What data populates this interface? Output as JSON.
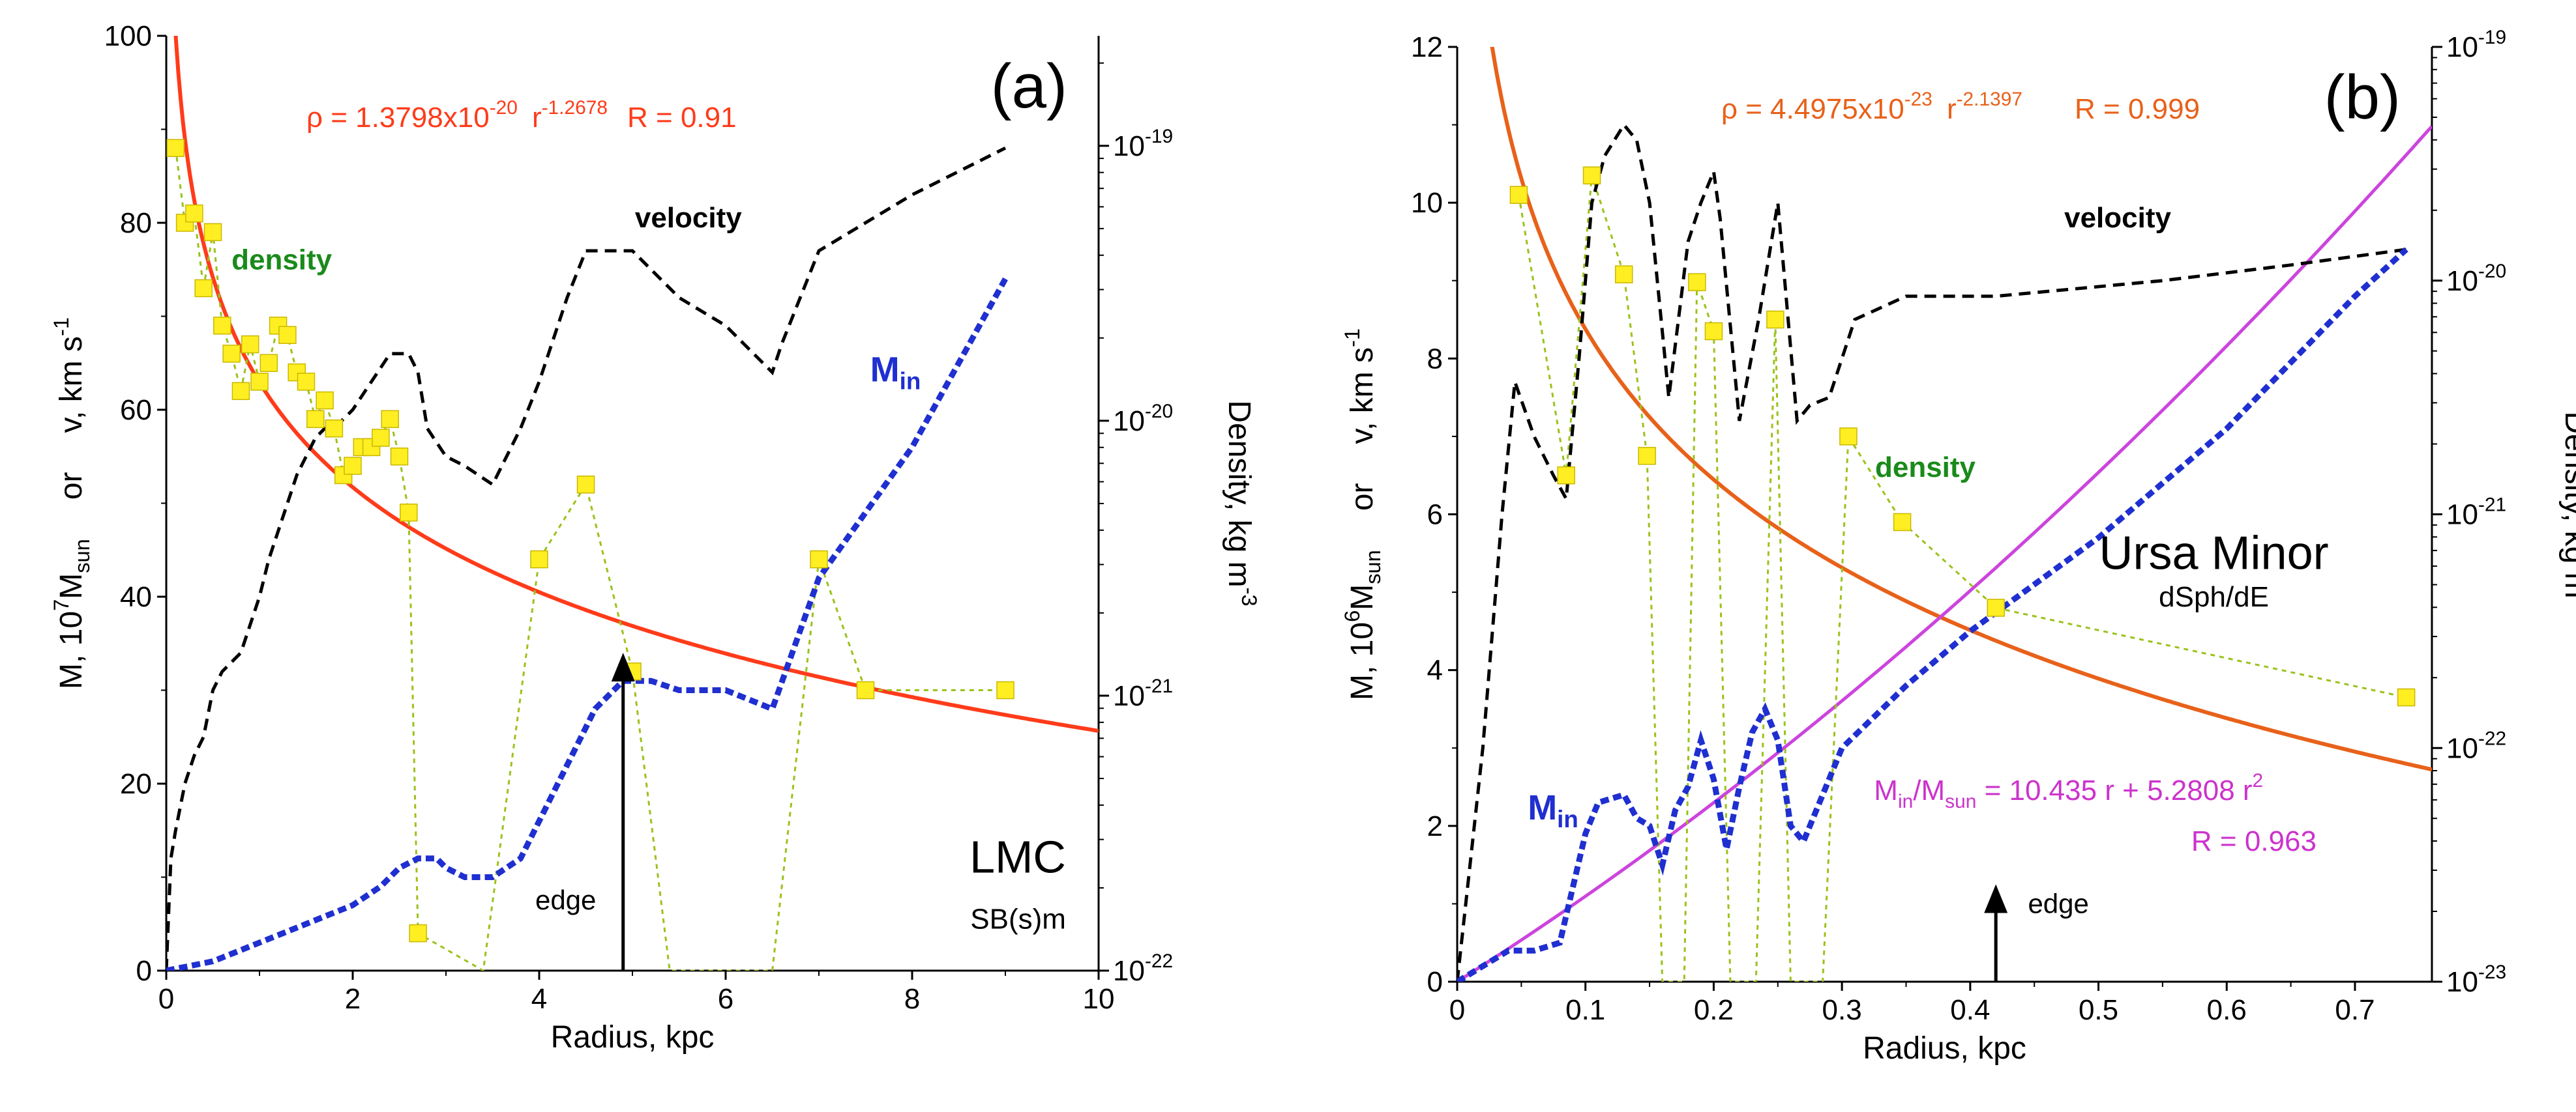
{
  "chart_data": [
    {
      "type": "line",
      "panel_label": "(a)",
      "galaxy": "LMC",
      "galaxy_type": "SB(s)m",
      "xlabel": "Radius, kpc",
      "ylabel_parts": [
        "M, 10",
        "7",
        "M",
        "sun",
        "or",
        "v, km s",
        "-1"
      ],
      "y2label_parts": [
        "Density, kg m",
        "-3"
      ],
      "xlim": [
        0,
        10
      ],
      "ylim": [
        0,
        100
      ],
      "y2lim_log10": [
        -22,
        -18.6
      ],
      "x_ticks": [
        "0",
        "2",
        "4",
        "6",
        "8",
        "10"
      ],
      "y_ticks": [
        "0",
        "20",
        "40",
        "60",
        "80",
        "100"
      ],
      "y2_ticks": [
        {
          "base": "10",
          "exp": "-22",
          "log": -22
        },
        {
          "base": "10",
          "exp": "-21",
          "log": -21
        },
        {
          "base": "10",
          "exp": "-20",
          "log": -20
        },
        {
          "base": "10",
          "exp": "-19",
          "log": -19
        }
      ],
      "fit_text": [
        "ρ = 1.3798x10",
        "-20",
        "r",
        "-1.2678",
        "R = 0.91"
      ],
      "fit": {
        "a": 1.3798e-20,
        "b": -1.2678
      },
      "labels": {
        "density": "density",
        "velocity": "velocity",
        "min_main": "M",
        "min_sub": "in",
        "edge": "edge"
      },
      "edge_x": 4.9,
      "series": [
        {
          "name": "velocity",
          "x": [
            0,
            0.05,
            0.1,
            0.2,
            0.3,
            0.4,
            0.5,
            0.6,
            0.7,
            0.8,
            0.9,
            1.0,
            1.1,
            1.2,
            1.3,
            1.4,
            1.5,
            1.6,
            1.7,
            1.8,
            2.0,
            2.2,
            2.4,
            2.6,
            2.7,
            2.8,
            3.0,
            3.2,
            3.5,
            3.8,
            4.0,
            4.3,
            4.5,
            4.8,
            5.0,
            5.5,
            6.0,
            6.5,
            6.6,
            7.0,
            8.0,
            9.0
          ],
          "values": [
            0,
            12,
            15,
            20,
            23,
            25,
            30,
            32,
            33,
            34,
            37,
            40,
            44,
            47,
            50,
            53,
            55,
            57,
            58,
            58,
            60,
            63,
            66,
            66,
            64,
            58,
            55,
            54,
            52,
            58,
            63,
            72,
            77,
            77,
            77,
            72,
            69,
            64,
            67,
            77,
            83,
            88
          ]
        },
        {
          "name": "M_in",
          "x": [
            0,
            0.5,
            1.0,
            1.5,
            2.0,
            2.3,
            2.5,
            2.7,
            2.9,
            3.0,
            3.2,
            3.5,
            3.8,
            4.0,
            4.3,
            4.6,
            4.9,
            5.2,
            5.5,
            6.0,
            6.5,
            7.0,
            8.0,
            9.0
          ],
          "values": [
            0,
            1,
            3,
            5,
            7,
            9,
            11,
            12,
            12,
            11,
            10,
            10,
            12,
            16,
            22,
            28,
            31,
            31,
            30,
            30,
            28,
            42,
            56,
            74
          ]
        },
        {
          "name": "density",
          "x": [
            0.1,
            0.2,
            0.3,
            0.4,
            0.5,
            0.6,
            0.7,
            0.8,
            0.9,
            1.0,
            1.1,
            1.2,
            1.3,
            1.4,
            1.5,
            1.6,
            1.7,
            1.8,
            1.9,
            2.0,
            2.1,
            2.2,
            2.3,
            2.4,
            2.5,
            2.6,
            2.7,
            3.4,
            4.0,
            4.5,
            5.0,
            5.4,
            6.5,
            7.0,
            7.5,
            9.0
          ],
          "values": [
            88,
            80,
            81,
            73,
            79,
            69,
            66,
            62,
            67,
            63,
            65,
            69,
            68,
            64,
            63,
            59,
            61,
            58,
            53,
            54,
            56,
            56,
            57,
            59,
            55,
            49,
            4,
            0,
            44,
            52,
            32,
            0,
            0,
            44,
            30,
            30
          ],
          "marker_shown": [
            true,
            true,
            true,
            true,
            true,
            true,
            true,
            true,
            true,
            true,
            true,
            true,
            true,
            true,
            true,
            true,
            true,
            true,
            true,
            true,
            true,
            true,
            true,
            true,
            true,
            true,
            true,
            false,
            true,
            true,
            true,
            false,
            false,
            true,
            true,
            true
          ]
        }
      ]
    },
    {
      "type": "line",
      "panel_label": "(b)",
      "galaxy": "Ursa Minor",
      "galaxy_type": "dSph/dE",
      "xlabel": "Radius, kpc",
      "ylabel_parts": [
        "M, 10",
        "6",
        "M",
        "sun",
        "or",
        "v, km s",
        "-1"
      ],
      "y2label_parts": [
        "Density, kg m",
        "-3"
      ],
      "xlim": [
        0,
        0.76
      ],
      "ylim": [
        0,
        12
      ],
      "y2lim_log10": [
        -23,
        -19
      ],
      "x_ticks": [
        "0",
        "0.1",
        "0.2",
        "0.3",
        "0.4",
        "0.5",
        "0.6",
        "0.7"
      ],
      "y_ticks": [
        "0",
        "2",
        "4",
        "6",
        "8",
        "10",
        "12"
      ],
      "y2_ticks": [
        {
          "base": "10",
          "exp": "-23",
          "log": -23
        },
        {
          "base": "10",
          "exp": "-22",
          "log": -22
        },
        {
          "base": "10",
          "exp": "-21",
          "log": -21
        },
        {
          "base": "10",
          "exp": "-20",
          "log": -20
        },
        {
          "base": "10",
          "exp": "-19",
          "log": -19
        }
      ],
      "fit_text": [
        "ρ = 4.4975x10",
        "-23",
        "r",
        "-2.1397",
        "R = 0.999"
      ],
      "fit": {
        "a": 4.4975e-23,
        "b": -2.1397
      },
      "mass_fit_text": [
        "M",
        "in",
        "/M",
        "sun",
        " = 10.435 r + 5.2808 r",
        "2"
      ],
      "mass_fit": {
        "a": 10.435,
        "b": 5.2808
      },
      "mass_fit_r": "R = 0.963",
      "labels": {
        "density": "density",
        "velocity": "velocity",
        "min_main": "M",
        "min_sub": "in",
        "edge": "edge"
      },
      "edge_x": 0.42,
      "series": [
        {
          "name": "velocity",
          "x": [
            0,
            0.01,
            0.02,
            0.03,
            0.035,
            0.045,
            0.06,
            0.075,
            0.085,
            0.095,
            0.105,
            0.115,
            0.13,
            0.14,
            0.15,
            0.165,
            0.18,
            0.19,
            0.2,
            0.205,
            0.22,
            0.235,
            0.245,
            0.25,
            0.265,
            0.275,
            0.29,
            0.31,
            0.35,
            0.42,
            0.55,
            0.65,
            0.74
          ],
          "values": [
            0,
            1.5,
            3,
            5,
            6,
            7.7,
            7,
            6.5,
            6.2,
            8,
            10,
            10.6,
            11,
            10.8,
            10,
            7.5,
            9.5,
            10,
            10.4,
            9.8,
            7.2,
            8.5,
            9.5,
            10,
            7.2,
            7.4,
            7.5,
            8.5,
            8.8,
            8.8,
            9.0,
            9.2,
            9.4
          ]
        },
        {
          "name": "M_in",
          "x": [
            0,
            0.02,
            0.04,
            0.06,
            0.08,
            0.1,
            0.11,
            0.12,
            0.13,
            0.14,
            0.15,
            0.16,
            0.17,
            0.18,
            0.19,
            0.2,
            0.21,
            0.22,
            0.23,
            0.24,
            0.25,
            0.26,
            0.27,
            0.28,
            0.3,
            0.35,
            0.4,
            0.5,
            0.6,
            0.7,
            0.74
          ],
          "values": [
            0,
            0.2,
            0.4,
            0.4,
            0.5,
            1.9,
            2.3,
            2.35,
            2.4,
            2.1,
            2.0,
            1.5,
            2.2,
            2.5,
            3.1,
            2.6,
            1.7,
            2.5,
            3.2,
            3.5,
            3.1,
            2.0,
            1.8,
            2.2,
            3.0,
            3.8,
            4.5,
            5.7,
            7.1,
            8.8,
            9.4
          ]
        },
        {
          "name": "density",
          "x": [
            0.048,
            0.085,
            0.105,
            0.13,
            0.148,
            0.16,
            0.177,
            0.187,
            0.2,
            0.213,
            0.233,
            0.248,
            0.26,
            0.285,
            0.305,
            0.347,
            0.42,
            0.74
          ],
          "values": [
            10.1,
            6.5,
            10.35,
            9.08,
            6.75,
            0,
            0,
            8.98,
            8.35,
            0,
            0,
            8.5,
            0,
            0,
            7.0,
            5.9,
            4.8,
            3.65
          ],
          "marker_shown": [
            true,
            true,
            true,
            true,
            true,
            false,
            false,
            true,
            true,
            false,
            false,
            true,
            false,
            false,
            true,
            true,
            true,
            true
          ]
        }
      ]
    }
  ]
}
